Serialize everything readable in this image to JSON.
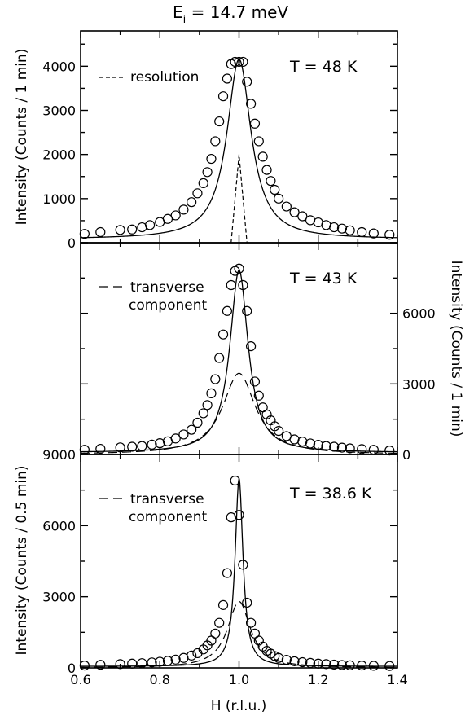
{
  "figure": {
    "title_main": "E",
    "title_sub": "i",
    "title_rest": " = 14.7 meV"
  },
  "chart_data": [
    {
      "type": "scatter",
      "panel": "top",
      "temperature_label": "T = 48 K",
      "ylabel": "Intensity (Counts / 1 min)",
      "y_axis_side": "left",
      "xlim": [
        0.6,
        1.4
      ],
      "ylim": [
        0,
        4800
      ],
      "yticks": [
        0,
        1000,
        2000,
        3000,
        4000
      ],
      "legend": {
        "label": "resolution",
        "position": "top-left",
        "style": "short-dash"
      },
      "series": [
        {
          "role": "data",
          "x": [
            0.61,
            0.65,
            0.7,
            0.73,
            0.755,
            0.775,
            0.8,
            0.82,
            0.84,
            0.86,
            0.88,
            0.895,
            0.91,
            0.92,
            0.93,
            0.94,
            0.95,
            0.96,
            0.97,
            0.98,
            0.99,
            1.0,
            1.01,
            1.02,
            1.03,
            1.04,
            1.05,
            1.06,
            1.07,
            1.08,
            1.09,
            1.1,
            1.12,
            1.14,
            1.16,
            1.18,
            1.2,
            1.22,
            1.24,
            1.26,
            1.28,
            1.31,
            1.34,
            1.38
          ],
          "y": [
            200,
            240,
            290,
            300,
            350,
            400,
            470,
            540,
            620,
            750,
            920,
            1120,
            1350,
            1600,
            1900,
            2300,
            2750,
            3320,
            3720,
            4050,
            4100,
            4100,
            4100,
            3650,
            3150,
            2700,
            2300,
            1950,
            1650,
            1400,
            1200,
            1000,
            820,
            690,
            600,
            510,
            460,
            400,
            350,
            320,
            280,
            240,
            210,
            180
          ]
        },
        {
          "role": "fit",
          "shape": "lorentzian",
          "center": 1.0,
          "amplitude": 4080,
          "hwhm": 0.037,
          "background": 80
        },
        {
          "role": "resolution",
          "shape": "triangle",
          "x": [
            0.98,
            0.995,
            1.0,
            1.005,
            1.02
          ],
          "y": [
            0,
            1500,
            2000,
            1500,
            0
          ]
        }
      ]
    },
    {
      "type": "scatter",
      "panel": "middle",
      "temperature_label": "T = 43 K",
      "ylabel": "Intensity (Counts / 1 min)",
      "y_axis_side": "right",
      "xlim": [
        0.6,
        1.4
      ],
      "ylim": [
        0,
        9000
      ],
      "yticks": [
        0,
        3000,
        6000,
        9000
      ],
      "ytick_labels_shown": [
        0,
        3000,
        6000
      ],
      "legend": {
        "label_line1": "transverse",
        "label_line2": "component",
        "position": "top-left",
        "style": "long-dash"
      },
      "series": [
        {
          "role": "data",
          "x": [
            0.61,
            0.65,
            0.7,
            0.73,
            0.755,
            0.78,
            0.8,
            0.82,
            0.84,
            0.86,
            0.88,
            0.895,
            0.91,
            0.92,
            0.93,
            0.94,
            0.95,
            0.96,
            0.97,
            0.98,
            0.99,
            1.0,
            1.01,
            1.02,
            1.03,
            1.04,
            1.05,
            1.06,
            1.07,
            1.08,
            1.09,
            1.1,
            1.12,
            1.14,
            1.16,
            1.18,
            1.2,
            1.22,
            1.24,
            1.26,
            1.28,
            1.31,
            1.34,
            1.38
          ],
          "y": [
            200,
            240,
            300,
            330,
            360,
            420,
            480,
            560,
            680,
            850,
            1050,
            1350,
            1750,
            2100,
            2600,
            3200,
            4100,
            5100,
            6100,
            7200,
            7800,
            7900,
            7200,
            6100,
            4600,
            3100,
            2500,
            2000,
            1700,
            1450,
            1200,
            1000,
            780,
            640,
            550,
            470,
            410,
            360,
            330,
            290,
            260,
            230,
            200,
            170
          ]
        },
        {
          "role": "fit",
          "shape": "lorentzian",
          "center": 1.0,
          "amplitude": 7750,
          "hwhm": 0.028,
          "background": 80
        },
        {
          "role": "transverse component",
          "shape": "lorentzian",
          "center": 1.0,
          "amplitude": 3450,
          "hwhm": 0.05,
          "background": 0
        }
      ]
    },
    {
      "type": "scatter",
      "panel": "bottom",
      "temperature_label": "T = 38.6 K",
      "ylabel": "Intensity (Counts / 0.5 min)",
      "xlabel": "H (r.l.u.)",
      "y_axis_side": "left",
      "xlim": [
        0.6,
        1.4
      ],
      "ylim": [
        0,
        9000
      ],
      "xticks": [
        0.6,
        0.8,
        1.0,
        1.2,
        1.4
      ],
      "xtick_labels": [
        "0.6",
        "0.8",
        "1.0",
        "1.2",
        "1.4"
      ],
      "yticks": [
        0,
        3000,
        6000,
        9000
      ],
      "legend": {
        "label_line1": "transverse",
        "label_line2": "component",
        "position": "top-left",
        "style": "long-dash"
      },
      "series": [
        {
          "role": "data",
          "x": [
            0.61,
            0.65,
            0.7,
            0.73,
            0.755,
            0.78,
            0.8,
            0.82,
            0.84,
            0.86,
            0.88,
            0.895,
            0.91,
            0.92,
            0.93,
            0.94,
            0.95,
            0.96,
            0.97,
            0.98,
            0.99,
            1.0,
            1.01,
            1.02,
            1.03,
            1.04,
            1.05,
            1.06,
            1.07,
            1.08,
            1.09,
            1.1,
            1.12,
            1.14,
            1.16,
            1.18,
            1.2,
            1.22,
            1.24,
            1.26,
            1.28,
            1.31,
            1.34,
            1.38
          ],
          "y": [
            100,
            130,
            160,
            180,
            200,
            230,
            260,
            300,
            350,
            420,
            520,
            620,
            780,
            950,
            1150,
            1450,
            1900,
            2650,
            4000,
            6350,
            7900,
            6450,
            4350,
            2750,
            1900,
            1450,
            1150,
            900,
            720,
            600,
            500,
            420,
            340,
            280,
            240,
            210,
            180,
            160,
            140,
            120,
            110,
            100,
            90,
            80
          ]
        },
        {
          "role": "fit",
          "shape": "lorentzian",
          "center": 1.0,
          "amplitude": 7950,
          "hwhm": 0.012,
          "background": 60
        },
        {
          "role": "transverse component",
          "shape": "lorentzian",
          "center": 1.0,
          "amplitude": 2800,
          "hwhm": 0.035,
          "background": 0
        }
      ]
    }
  ]
}
